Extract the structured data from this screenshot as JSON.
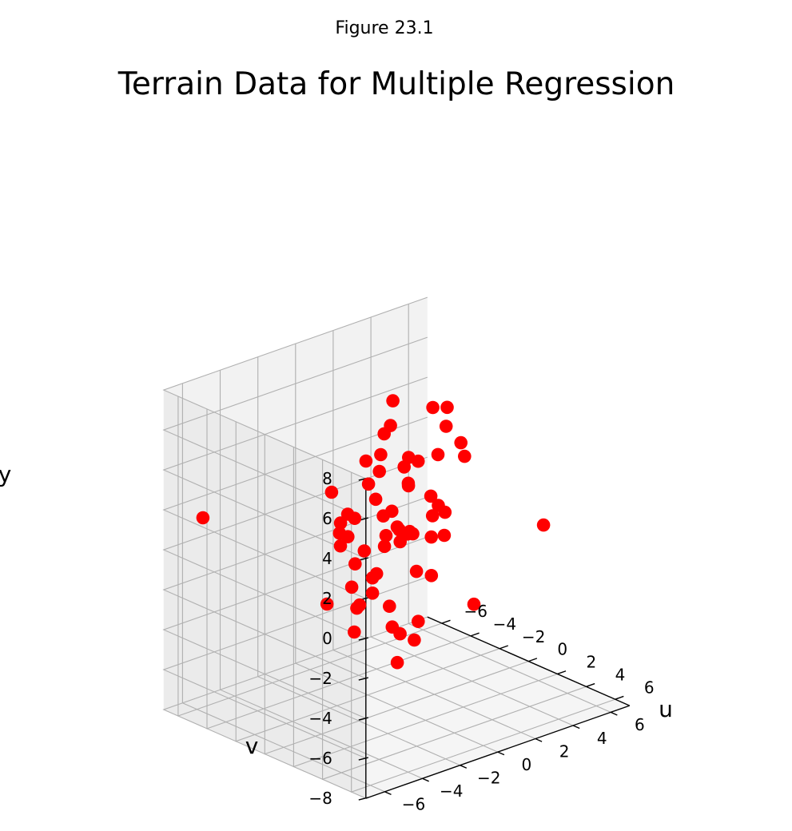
{
  "figure": {
    "label": "Figure 23.1"
  },
  "chart_data": {
    "type": "scatter",
    "title": "Terrain Data for Multiple Regression",
    "xlabel": "u",
    "ylabel": "v",
    "zlabel": "y",
    "xlim": [
      -7,
      7
    ],
    "ylim": [
      -7,
      7
    ],
    "zlim": [
      -8,
      8
    ],
    "xticks": [
      "−6",
      "−4",
      "−2",
      "0",
      "2",
      "4",
      "6"
    ],
    "yticks": [
      "−6",
      "−4",
      "−2",
      "0",
      "2",
      "4",
      "6"
    ],
    "zticks": [
      "−8",
      "−6",
      "−4",
      "−2",
      "0",
      "2",
      "4",
      "6",
      "8"
    ],
    "grid": true,
    "marker_color": "#ff0000",
    "pane_color": "#f2f2f2",
    "grid_color": "#b0b0b0",
    "points": [
      [
        5.2,
        -6.1,
        0.65
      ],
      [
        -6.5,
        -5.3,
        1.2
      ],
      [
        5.5,
        -5.5,
        1.3
      ],
      [
        3.4,
        -6.3,
        0.35
      ],
      [
        4.5,
        -5.7,
        -0.9
      ],
      [
        6.5,
        -4.8,
        -0.65
      ],
      [
        3.7,
        -4.8,
        -0.1
      ],
      [
        6.7,
        -4.2,
        -1.1
      ],
      [
        4.2,
        -3.6,
        -0.4
      ],
      [
        2.5,
        -4.3,
        0.25
      ],
      [
        5.0,
        -3.8,
        -2.9
      ],
      [
        4.0,
        -3.3,
        -1.6
      ],
      [
        5.8,
        -3.3,
        -0.75
      ],
      [
        2.5,
        -3.2,
        0.35
      ],
      [
        -0.5,
        -2.6,
        0.8
      ],
      [
        0.5,
        -2.1,
        0.7
      ],
      [
        -0.9,
        -1.9,
        0.9
      ],
      [
        -1.8,
        -1.6,
        1.2
      ],
      [
        2.0,
        -2.6,
        0.2
      ],
      [
        -0.4,
        -1.9,
        -0.3
      ],
      [
        2.2,
        -1.5,
        1.5
      ],
      [
        -1.3,
        -1.6,
        1.8
      ],
      [
        3.2,
        -1.4,
        0.3
      ],
      [
        -2.0,
        -1.5,
        0.6
      ],
      [
        1.5,
        -1.0,
        1.7
      ],
      [
        0.7,
        -1.1,
        1.2
      ],
      [
        -3.2,
        -1.0,
        2.1
      ],
      [
        0.2,
        -0.8,
        0.4
      ],
      [
        -1.6,
        -1.0,
        1.3
      ],
      [
        1.9,
        -0.6,
        1.5
      ],
      [
        -0.4,
        -0.4,
        1.6
      ],
      [
        2.8,
        -0.3,
        -0.4
      ],
      [
        0.3,
        -0.2,
        1.2
      ],
      [
        1.4,
        -0.5,
        1.3
      ],
      [
        -0.2,
        -0.1,
        1.8
      ],
      [
        0.9,
        0.0,
        1.1
      ],
      [
        2.4,
        0.0,
        1.3
      ],
      [
        -2.6,
        0.5,
        2.2
      ],
      [
        -2.1,
        0.5,
        1.6
      ],
      [
        -2.5,
        1.0,
        2.7
      ],
      [
        -3.3,
        0.9,
        3.0
      ],
      [
        1.6,
        1.3,
        0.7
      ],
      [
        4.7,
        0.5,
        -1.5
      ],
      [
        -1.4,
        1.7,
        2.1
      ],
      [
        0.4,
        1.6,
        1.2
      ],
      [
        1.0,
        1.8,
        1.5
      ],
      [
        -0.5,
        2.2,
        1.7
      ],
      [
        -1.8,
        2.0,
        2.0
      ],
      [
        -2.3,
        2.4,
        3.0
      ],
      [
        -4.1,
        2.3,
        2.6
      ],
      [
        -3.0,
        2.7,
        2.2
      ],
      [
        -0.5,
        2.6,
        1.1
      ],
      [
        -4.6,
        3.2,
        3.6
      ],
      [
        -5.3,
        3.4,
        2.9
      ],
      [
        -3.6,
        3.9,
        1.9
      ],
      [
        -6.0,
        4.4,
        4.0
      ],
      [
        -3.4,
        4.8,
        2.0
      ],
      [
        -2.6,
        5.6,
        1.9
      ],
      [
        -4.4,
        6.0,
        2.7
      ],
      [
        -6.1,
        6.6,
        2.9
      ],
      [
        -3.9,
        6.4,
        1.9
      ],
      [
        -5.5,
        6.9,
        3.0
      ],
      [
        1.3,
        6.8,
        -0.7
      ]
    ]
  }
}
